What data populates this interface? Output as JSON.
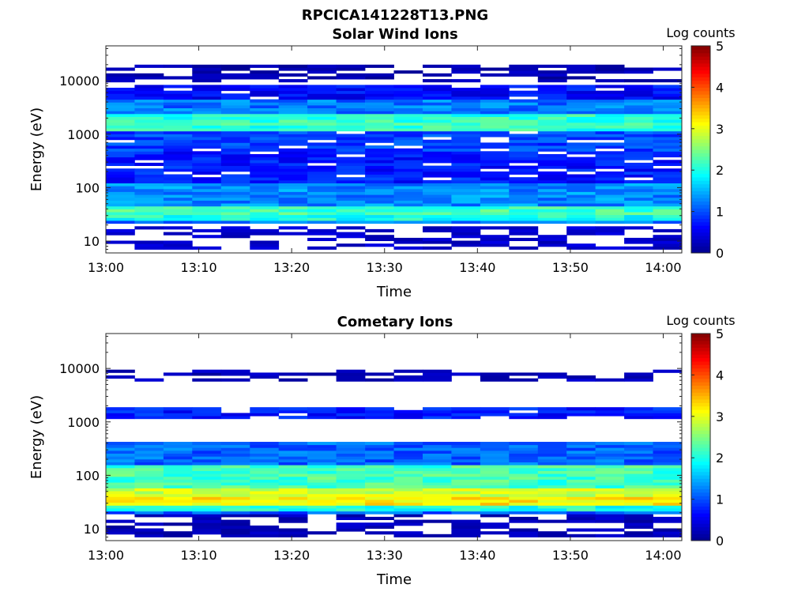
{
  "figure": {
    "title": "RPCICA141228T13.PNG"
  },
  "colorscale": [
    "#00008f",
    "#0000ff",
    "#0080ff",
    "#00ffff",
    "#80ff80",
    "#ffff00",
    "#ff8000",
    "#ff0000",
    "#800000"
  ],
  "chart_data": [
    {
      "type": "heatmap",
      "title": "Solar Wind Ions",
      "xlabel": "Time",
      "ylabel": "Energy (eV)",
      "yscale": "log",
      "ylim": [
        6,
        45000
      ],
      "xlim": [
        "13:00",
        "14:02"
      ],
      "xticks": [
        "13:00",
        "13:10",
        "13:20",
        "13:30",
        "13:40",
        "13:50",
        "14:00"
      ],
      "yticks": [
        10,
        100,
        1000,
        10000
      ],
      "colorbar": {
        "label": "Log counts",
        "range": [
          0,
          5
        ],
        "ticks": [
          0,
          1,
          2,
          3,
          4,
          5
        ]
      },
      "grid": false,
      "bands": [
        {
          "emin": 7,
          "emax": 20,
          "value": 0.2
        },
        {
          "emin": 21,
          "emax": 25,
          "value": 1.2
        },
        {
          "emin": 25,
          "emax": 32,
          "value": 2.0
        },
        {
          "emin": 32,
          "emax": 45,
          "value": 2.2
        },
        {
          "emin": 45,
          "emax": 120,
          "value": 1.3
        },
        {
          "emin": 120,
          "emax": 500,
          "value": 0.7
        },
        {
          "emin": 500,
          "emax": 1100,
          "value": 0.9
        },
        {
          "emin": 1100,
          "emax": 2500,
          "value": 2.1
        },
        {
          "emin": 2500,
          "emax": 4500,
          "value": 1.2
        },
        {
          "emin": 4500,
          "emax": 8500,
          "value": 0.6
        },
        {
          "emin": 9500,
          "emax": 20000,
          "value": 0.05
        }
      ]
    },
    {
      "type": "heatmap",
      "title": "Cometary Ions",
      "xlabel": "Time",
      "ylabel": "Energy (eV)",
      "yscale": "log",
      "ylim": [
        6,
        45000
      ],
      "xlim": [
        "13:00",
        "14:02"
      ],
      "xticks": [
        "13:00",
        "13:10",
        "13:20",
        "13:30",
        "13:40",
        "13:50",
        "14:00"
      ],
      "yticks": [
        10,
        100,
        1000,
        10000
      ],
      "colorbar": {
        "label": "Log counts",
        "range": [
          0,
          5
        ],
        "ticks": [
          0,
          1,
          2,
          3,
          4,
          5
        ]
      },
      "grid": false,
      "bands": [
        {
          "emin": 7,
          "emax": 18,
          "value": 0.1
        },
        {
          "emin": 18,
          "emax": 22,
          "value": 1.1
        },
        {
          "emin": 22,
          "emax": 28,
          "value": 2.0
        },
        {
          "emin": 28,
          "emax": 38,
          "value": 3.2
        },
        {
          "emin": 38,
          "emax": 60,
          "value": 2.9
        },
        {
          "emin": 60,
          "emax": 150,
          "value": 2.2
        },
        {
          "emin": 150,
          "emax": 400,
          "value": 1.1
        },
        {
          "emin": 1100,
          "emax": 2000,
          "value": 0.7
        },
        {
          "emin": 6000,
          "emax": 9000,
          "value": 0.1
        }
      ]
    }
  ]
}
